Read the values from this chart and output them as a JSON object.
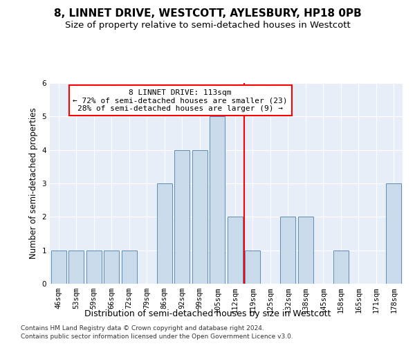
{
  "title": "8, LINNET DRIVE, WESTCOTT, AYLESBURY, HP18 0PB",
  "subtitle": "Size of property relative to semi-detached houses in Westcott",
  "xlabel": "Distribution of semi-detached houses by size in Westcott",
  "ylabel": "Number of semi-detached properties",
  "categories": [
    "46sqm",
    "53sqm",
    "59sqm",
    "66sqm",
    "72sqm",
    "79sqm",
    "86sqm",
    "92sqm",
    "99sqm",
    "105sqm",
    "112sqm",
    "119sqm",
    "125sqm",
    "132sqm",
    "138sqm",
    "145sqm",
    "158sqm",
    "165sqm",
    "171sqm",
    "178sqm"
  ],
  "values": [
    1,
    1,
    1,
    1,
    1,
    0,
    3,
    4,
    4,
    5,
    2,
    1,
    0,
    2,
    2,
    0,
    1,
    0,
    0,
    3
  ],
  "bar_color": "#c9daea",
  "bar_edgecolor": "#5b8db8",
  "reference_line_index": 10.5,
  "reference_label": "8 LINNET DRIVE: 113sqm",
  "annotation_line1": "← 72% of semi-detached houses are smaller (23)",
  "annotation_line2": "28% of semi-detached houses are larger (9) →",
  "vline_color": "red",
  "ylim": [
    0,
    6
  ],
  "yticks": [
    0,
    1,
    2,
    3,
    4,
    5,
    6
  ],
  "footer1": "Contains HM Land Registry data © Crown copyright and database right 2024.",
  "footer2": "Contains public sector information licensed under the Open Government Licence v3.0.",
  "background_color": "#e8eef8",
  "grid_color": "white",
  "title_fontsize": 11,
  "subtitle_fontsize": 9.5,
  "xlabel_fontsize": 9,
  "ylabel_fontsize": 8.5,
  "tick_fontsize": 7.5,
  "annot_fontsize": 8,
  "footer_fontsize": 6.5
}
